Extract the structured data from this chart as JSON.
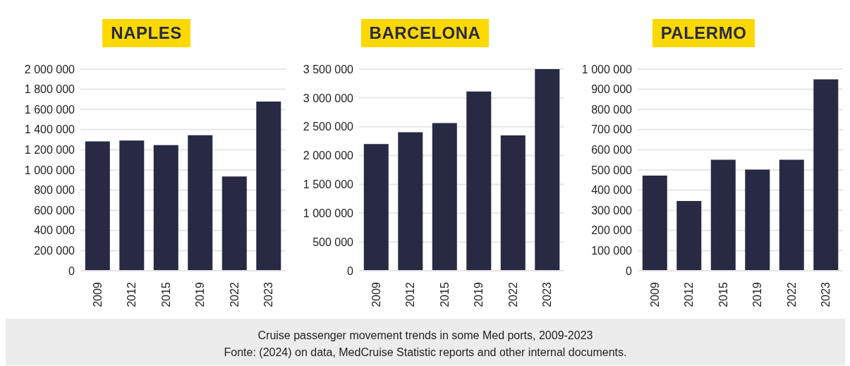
{
  "chart_data": [
    {
      "type": "bar",
      "title": "NAPLES",
      "categories": [
        "2009",
        "2012",
        "2015",
        "2019",
        "2022",
        "2023"
      ],
      "values": [
        1284000,
        1292000,
        1247000,
        1345000,
        936000,
        1679000
      ],
      "color": "#282a44",
      "ylim": [
        0,
        2000000
      ],
      "yticks": [
        {
          "value": 0,
          "label": "0"
        },
        {
          "value": 200000,
          "label": "200 000"
        },
        {
          "value": 400000,
          "label": "400 000"
        },
        {
          "value": 600000,
          "label": "600 000"
        },
        {
          "value": 800000,
          "label": "800 000"
        },
        {
          "value": 1000000,
          "label": "1 000 000"
        },
        {
          "value": 1200000,
          "label": "1 200 000"
        },
        {
          "value": 1400000,
          "label": "1 400 000"
        },
        {
          "value": 1600000,
          "label": "1 600 000"
        },
        {
          "value": 1800000,
          "label": "1 800 000"
        },
        {
          "value": 2000000,
          "label": "2 000 000"
        }
      ],
      "grid": "y",
      "annotations": [
        "Cruise passenger movement trends in some Med ports, 2009-2023",
        "Fonte: (2024) on data, MedCruise Statistic reports and other internal documents."
      ]
    },
    {
      "type": "bar",
      "title": "BARCELONA",
      "categories": [
        "2009",
        "2012",
        "2015",
        "2019",
        "2022",
        "2023"
      ],
      "values": [
        2200000,
        2405000,
        2565000,
        3110000,
        2350000,
        3500000
      ],
      "color": "#282a44",
      "ylim": [
        0,
        3500000
      ],
      "yticks": [
        {
          "value": 0,
          "label": "0"
        },
        {
          "value": 500000,
          "label": "500 000"
        },
        {
          "value": 1000000,
          "label": "1 000 000"
        },
        {
          "value": 1500000,
          "label": "1 500 000"
        },
        {
          "value": 2000000,
          "label": "2 000 000"
        },
        {
          "value": 2500000,
          "label": "2 500 000"
        },
        {
          "value": 3000000,
          "label": "3 000 000"
        },
        {
          "value": 3500000,
          "label": "3 500 000"
        }
      ],
      "grid": "y"
    },
    {
      "type": "bar",
      "title": "PALERMO",
      "categories": [
        "2009",
        "2012",
        "2015",
        "2019",
        "2022",
        "2023"
      ],
      "values": [
        472000,
        346000,
        551000,
        502000,
        551000,
        949000
      ],
      "color": "#282a44",
      "ylim": [
        0,
        1000000
      ],
      "yticks": [
        {
          "value": 0,
          "label": "0"
        },
        {
          "value": 100000,
          "label": "100 000"
        },
        {
          "value": 200000,
          "label": "200 000"
        },
        {
          "value": 300000,
          "label": "300 000"
        },
        {
          "value": 400000,
          "label": "400 000"
        },
        {
          "value": 500000,
          "label": "500 000"
        },
        {
          "value": 600000,
          "label": "600 000"
        },
        {
          "value": 700000,
          "label": "700 000"
        },
        {
          "value": 800000,
          "label": "800 000"
        },
        {
          "value": 900000,
          "label": "900 000"
        },
        {
          "value": 1000000,
          "label": "1 000 000"
        }
      ],
      "grid": "y"
    }
  ]
}
